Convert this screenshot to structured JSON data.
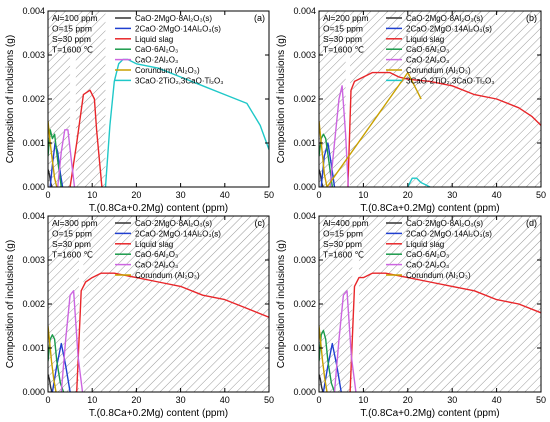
{
  "figure": {
    "y_title": "Composition of inclusions (g)",
    "x_title": "T.(0.8Ca+0.2Mg) content (ppm)"
  },
  "legend_entries": [
    {
      "name": "CaO·2MgO·8Al₂O₃(s)",
      "color": "#333333"
    },
    {
      "name": "2CaO·2MgO·14Al₂O₃(s)",
      "color": "#1f3fd0"
    },
    {
      "name": "Liquid slag",
      "color": "#e8262a"
    },
    {
      "name": "CaO·6Al₂O₃",
      "color": "#1a9a4a"
    },
    {
      "name": "CaO·2Al₂O₃",
      "color": "#cc66e0"
    },
    {
      "name": "Corundum (Al₂O₃)",
      "color": "#c8a000"
    },
    {
      "name": "3CaO·2TiO₂,3CaO·Ti₂O₃",
      "color": "#1fc8c8"
    }
  ],
  "chart_data": [
    {
      "type": "line",
      "panel": "(a)",
      "conditions": [
        "Al=100 ppm",
        "O=15 ppm",
        "S=30 ppm",
        "T=1600 ℃"
      ],
      "xlim": [
        0,
        50
      ],
      "ylim": [
        0,
        0.004
      ],
      "xticks": [
        0,
        10,
        20,
        30,
        40,
        50
      ],
      "yticks": [
        0,
        0.001,
        0.002,
        0.003,
        0.004
      ],
      "ytick_labels": [
        "0.000",
        "0.001",
        "0.002",
        "0.003",
        "0.004"
      ],
      "hatched_regions": [
        [
          0,
          5
        ],
        [
          6.3,
          13
        ]
      ],
      "legend": [
        0,
        1,
        2,
        3,
        4,
        5,
        6
      ],
      "series": [
        {
          "name": "CaO·2MgO·8Al₂O₃(s)",
          "color": "#333333",
          "x": [
            0,
            0.3,
            0.6,
            0.9
          ],
          "y": [
            0.0004,
            0.0003,
            0.0001,
            0
          ]
        },
        {
          "name": "2CaO·2MgO·14Al₂O₃(s)",
          "color": "#1f3fd0",
          "x": [
            0.5,
            1.0,
            1.6,
            2.2,
            2.8,
            3.3
          ],
          "y": [
            0,
            0.0005,
            0.001,
            0.0008,
            0.0003,
            0
          ]
        },
        {
          "name": "Liquid slag",
          "color": "#e8262a",
          "x": [
            5.0,
            6.5,
            8.0,
            9.5,
            10.5,
            11.0,
            12.2
          ],
          "y": [
            0,
            0.001,
            0.0021,
            0.0022,
            0.002,
            0.0013,
            0
          ]
        },
        {
          "name": "CaO·6Al₂O₃",
          "color": "#1a9a4a",
          "x": [
            0,
            0.5,
            1.0,
            1.5,
            2.2,
            3.0
          ],
          "y": [
            0.0007,
            0.0013,
            0.0011,
            0.0012,
            0.0006,
            0
          ]
        },
        {
          "name": "CaO·2Al₂O₃",
          "color": "#cc66e0",
          "x": [
            2.2,
            3.0,
            3.8,
            4.5,
            5.3,
            6.0
          ],
          "y": [
            0,
            0.0008,
            0.0013,
            0.0013,
            0.0006,
            0
          ]
        },
        {
          "name": "Corundum (Al₂O₃)",
          "color": "#c8a000",
          "x": [
            0,
            0.5,
            1.0,
            1.5,
            2.0
          ],
          "y": [
            0.0015,
            0.001,
            0.0006,
            0.0002,
            0
          ]
        },
        {
          "name": "3CaO·2TiO₂,3CaO·Ti₂O₃",
          "color": "#1fc8c8",
          "x": [
            13,
            14,
            15,
            16,
            17,
            18,
            20,
            25,
            30,
            35,
            40,
            45,
            48,
            50
          ],
          "y": [
            0,
            0.0014,
            0.0024,
            0.0028,
            0.0029,
            0.0029,
            0.0028,
            0.0027,
            0.0025,
            0.0023,
            0.0021,
            0.0019,
            0.0014,
            0.00085
          ]
        }
      ]
    },
    {
      "type": "line",
      "panel": "(b)",
      "conditions": [
        "Al=200 ppm",
        "O=15 ppm",
        "S=30 ppm",
        "T=1600 ℃"
      ],
      "xlim": [
        0,
        50
      ],
      "ylim": [
        0,
        0.004
      ],
      "xticks": [
        0,
        10,
        20,
        30,
        40,
        50
      ],
      "yticks": [
        0,
        0.001,
        0.002,
        0.003,
        0.004
      ],
      "ytick_labels": [
        "0.000",
        "0.001",
        "0.002",
        "0.003",
        "0.004"
      ],
      "hatched_regions": [
        [
          0,
          6
        ],
        [
          7,
          50
        ]
      ],
      "legend": [
        0,
        1,
        2,
        3,
        4,
        5,
        6
      ],
      "series": [
        {
          "name": "CaO·2MgO·8Al₂O₃(s)",
          "color": "#333333",
          "x": [
            0,
            0.3,
            0.6,
            0.9
          ],
          "y": [
            0.0004,
            0.0003,
            0.0001,
            0
          ]
        },
        {
          "name": "2CaO·2MgO·14Al₂O₃(s)",
          "color": "#1f3fd0",
          "x": [
            0.5,
            1.2,
            2.0,
            2.8,
            3.5
          ],
          "y": [
            0,
            0.0007,
            0.001,
            0.0005,
            0
          ]
        },
        {
          "name": "Liquid slag",
          "color": "#e8262a",
          "x": [
            6.5,
            7.2,
            8,
            10,
            12,
            14,
            16,
            18,
            20,
            25,
            30,
            35,
            40,
            45,
            48,
            50
          ],
          "y": [
            0,
            0.0022,
            0.0024,
            0.0025,
            0.0026,
            0.0026,
            0.0026,
            0.0025,
            0.00245,
            0.0024,
            0.0023,
            0.0021,
            0.002,
            0.0018,
            0.0016,
            0.0014
          ]
        },
        {
          "name": "CaO·6Al₂O₃",
          "color": "#1a9a4a",
          "x": [
            0,
            0.5,
            1.0,
            1.5,
            2.2,
            3.0
          ],
          "y": [
            0.0007,
            0.0011,
            0.0012,
            0.0011,
            0.0006,
            0
          ]
        },
        {
          "name": "CaO·2Al₂O₃",
          "color": "#cc66e0",
          "x": [
            2.5,
            3.5,
            4.5,
            5.2,
            6.0,
            6.6
          ],
          "y": [
            0,
            0.001,
            0.002,
            0.0023,
            0.0012,
            0
          ]
        },
        {
          "name": "Corundum (Al₂O₃)",
          "color": "#c8a000",
          "x": [
            0,
            0.4,
            0.8,
            1.2,
            1.8,
            20,
            21,
            22,
            23
          ],
          "y": [
            0.0015,
            0.0011,
            0.0007,
            0.0003,
            0,
            0.0026,
            0.0024,
            0.0022,
            0.002
          ]
        },
        {
          "name": "3CaO·2TiO₂,3CaO·Ti₂O₃",
          "color": "#1fc8c8",
          "x": [
            20,
            21,
            22,
            23,
            24,
            25
          ],
          "y": [
            0,
            0.0002,
            0.0002,
            0.0001,
            5e-05,
            0
          ]
        }
      ]
    },
    {
      "type": "line",
      "panel": "(c)",
      "conditions": [
        "Al=300 ppm",
        "O=15 ppm",
        "S=30 ppm",
        "T=1600 ℃"
      ],
      "xlim": [
        0,
        50
      ],
      "ylim": [
        0,
        0.004
      ],
      "xticks": [
        0,
        10,
        20,
        30,
        40,
        50
      ],
      "yticks": [
        0,
        0.001,
        0.002,
        0.003,
        0.004
      ],
      "ytick_labels": [
        "0.000",
        "0.001",
        "0.002",
        "0.003",
        "0.004"
      ],
      "hatched_regions": [
        [
          0,
          7
        ],
        [
          8,
          50
        ]
      ],
      "legend": [
        0,
        1,
        2,
        3,
        4,
        5
      ],
      "series": [
        {
          "name": "CaO·2MgO·8Al₂O₃(s)",
          "color": "#333333",
          "x": [
            0,
            0.3,
            0.6,
            0.9
          ],
          "y": [
            0.0004,
            0.0003,
            0.0001,
            0
          ]
        },
        {
          "name": "2CaO·2MgO·14Al₂O₃(s)",
          "color": "#1f3fd0",
          "x": [
            1.0,
            2.0,
            3.0,
            4.0,
            5.0
          ],
          "y": [
            0,
            0.0006,
            0.0011,
            0.0006,
            0
          ]
        },
        {
          "name": "Liquid slag",
          "color": "#e8262a",
          "x": [
            6.5,
            7.5,
            8.5,
            10,
            12,
            15,
            20,
            25,
            30,
            35,
            40,
            45,
            50
          ],
          "y": [
            0,
            0.0023,
            0.0025,
            0.0026,
            0.0027,
            0.0027,
            0.0026,
            0.0025,
            0.0024,
            0.0022,
            0.0021,
            0.0019,
            0.0017
          ]
        },
        {
          "name": "CaO·6Al₂O₃",
          "color": "#1a9a4a",
          "x": [
            0,
            0.5,
            1.0,
            1.5,
            2.0,
            2.8,
            3.5
          ],
          "y": [
            0.0007,
            0.0012,
            0.0013,
            0.0012,
            0.0007,
            0.0002,
            0
          ]
        },
        {
          "name": "CaO·2Al₂O₃",
          "color": "#cc66e0",
          "x": [
            3.0,
            4.0,
            5.0,
            5.8,
            6.8,
            7.8
          ],
          "y": [
            0,
            0.0012,
            0.0022,
            0.0023,
            0.0008,
            0
          ]
        },
        {
          "name": "Corundum (Al₂O₃)",
          "color": "#c8a000",
          "x": [
            0,
            0.4,
            0.8,
            1.3,
            1.8
          ],
          "y": [
            0.0015,
            0.0011,
            0.0007,
            0.0003,
            0
          ]
        }
      ]
    },
    {
      "type": "line",
      "panel": "(d)",
      "conditions": [
        "Al=400 ppm",
        "O=15 ppm",
        "S=30 ppm",
        "T=1600 ℃"
      ],
      "xlim": [
        0,
        50
      ],
      "ylim": [
        0,
        0.004
      ],
      "xticks": [
        0,
        10,
        20,
        30,
        40,
        50
      ],
      "yticks": [
        0,
        0.001,
        0.002,
        0.003,
        0.004
      ],
      "ytick_labels": [
        "0.000",
        "0.001",
        "0.002",
        "0.003",
        "0.004"
      ],
      "hatched_regions": [
        [
          0,
          7.5
        ],
        [
          9,
          50
        ]
      ],
      "legend": [
        0,
        1,
        2,
        3,
        4,
        5
      ],
      "series": [
        {
          "name": "CaO·2MgO·8Al₂O₃(s)",
          "color": "#333333",
          "x": [
            0,
            0.3,
            0.6,
            0.9
          ],
          "y": [
            0.0004,
            0.0003,
            0.0001,
            0
          ]
        },
        {
          "name": "2CaO·2MgO·14Al₂O₃(s)",
          "color": "#1f3fd0",
          "x": [
            1.0,
            2.0,
            3.0,
            4.0,
            5.0
          ],
          "y": [
            0,
            0.0006,
            0.0011,
            0.0006,
            0
          ]
        },
        {
          "name": "Liquid slag",
          "color": "#e8262a",
          "x": [
            7.0,
            8.0,
            9.0,
            10,
            12,
            15,
            20,
            25,
            30,
            35,
            40,
            45,
            50
          ],
          "y": [
            0,
            0.0024,
            0.0026,
            0.0026,
            0.0027,
            0.0027,
            0.0026,
            0.0025,
            0.0024,
            0.0023,
            0.0021,
            0.002,
            0.0018
          ]
        },
        {
          "name": "CaO·6Al₂O₃",
          "color": "#1a9a4a",
          "x": [
            0,
            0.5,
            1.0,
            1.5,
            2.0,
            2.8,
            3.5
          ],
          "y": [
            0.0007,
            0.0013,
            0.0014,
            0.0012,
            0.0007,
            0.0002,
            0
          ]
        },
        {
          "name": "CaO·2Al₂O₃",
          "color": "#cc66e0",
          "x": [
            3.5,
            4.5,
            5.5,
            6.3,
            7.3,
            8.3
          ],
          "y": [
            0,
            0.0012,
            0.0022,
            0.0023,
            0.0008,
            0
          ]
        },
        {
          "name": "Corundum (Al₂O₃)",
          "color": "#c8a000",
          "x": [
            0,
            0.4,
            0.8,
            1.3,
            1.8
          ],
          "y": [
            0.0015,
            0.0011,
            0.0007,
            0.0003,
            0
          ]
        }
      ]
    }
  ]
}
